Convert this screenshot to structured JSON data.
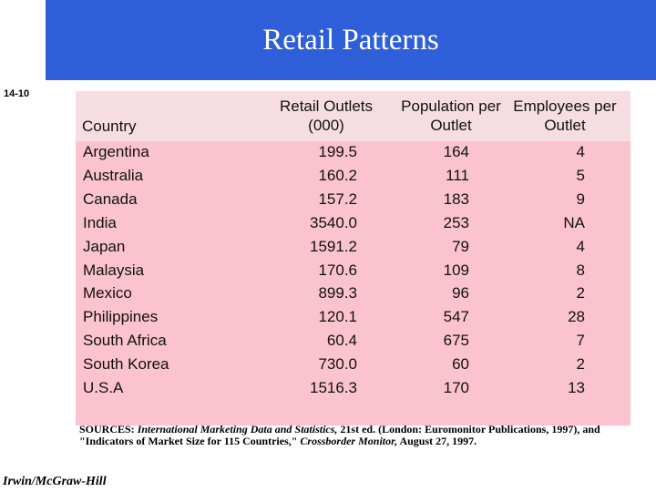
{
  "header": {
    "title": "Retail Patterns",
    "slide_number": "14-10"
  },
  "table": {
    "columns": [
      "Country",
      "Retail Outlets (000)",
      "Population per Outlet",
      "Employees per Outlet"
    ],
    "rows": [
      [
        "Argentina",
        "199.5",
        "164",
        "4"
      ],
      [
        "Australia",
        "160.2",
        "111",
        "5"
      ],
      [
        "Canada",
        "157.2",
        "183",
        "9"
      ],
      [
        "India",
        "3540.0",
        "253",
        "NA"
      ],
      [
        "Japan",
        "1591.2",
        "79",
        "4"
      ],
      [
        "Malaysia",
        "170.6",
        "109",
        "8"
      ],
      [
        "Mexico",
        "899.3",
        "96",
        "2"
      ],
      [
        "Philippines",
        "120.1",
        "547",
        "28"
      ],
      [
        "South Africa",
        "60.4",
        "675",
        "7"
      ],
      [
        "South Korea",
        "730.0",
        "60",
        "2"
      ],
      [
        "U.S.A",
        "1516.3",
        "170",
        "13"
      ]
    ]
  },
  "sources": [
    "SOURCES: ",
    "International Marketing Data and Statistics,",
    " 21st ed. (London: Euromonitor Publications, 1997), and \"Indicators of Market Size for 115 Countries,\" ",
    "Crossborder Monitor,",
    " August 27, 1997."
  ],
  "footer": "Irwin/McGraw-Hill"
}
